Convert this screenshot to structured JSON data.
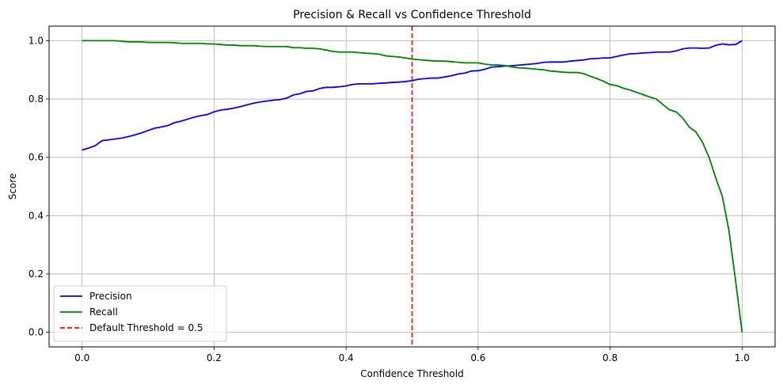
{
  "chart_data": {
    "type": "line",
    "title": "Precision & Recall vs Confidence Threshold",
    "xlabel": "Confidence Threshold",
    "ylabel": "Score",
    "xlim": [
      -0.05,
      1.05
    ],
    "ylim": [
      -0.05,
      1.05
    ],
    "xticks": [
      0.0,
      0.2,
      0.4,
      0.6,
      0.8,
      1.0
    ],
    "yticks": [
      0.0,
      0.2,
      0.4,
      0.6,
      0.8,
      1.0
    ],
    "xtick_labels": [
      "0.0",
      "0.2",
      "0.4",
      "0.6",
      "0.8",
      "1.0"
    ],
    "ytick_labels": [
      "0.0",
      "0.2",
      "0.4",
      "0.6",
      "0.8",
      "1.0"
    ],
    "grid": true,
    "legend_position": "lower-left",
    "x": [
      0.0,
      0.01,
      0.02,
      0.03,
      0.04,
      0.05,
      0.06,
      0.07,
      0.08,
      0.09,
      0.1,
      0.11,
      0.12,
      0.13,
      0.14,
      0.15,
      0.16,
      0.17,
      0.18,
      0.19,
      0.2,
      0.21,
      0.22,
      0.23,
      0.24,
      0.25,
      0.26,
      0.27,
      0.28,
      0.29,
      0.3,
      0.31,
      0.32,
      0.33,
      0.34,
      0.35,
      0.36,
      0.37,
      0.38,
      0.39,
      0.4,
      0.41,
      0.42,
      0.43,
      0.44,
      0.45,
      0.46,
      0.47,
      0.48,
      0.49,
      0.5,
      0.51,
      0.52,
      0.53,
      0.54,
      0.55,
      0.56,
      0.57,
      0.58,
      0.59,
      0.6,
      0.61,
      0.62,
      0.63,
      0.64,
      0.65,
      0.66,
      0.67,
      0.68,
      0.69,
      0.7,
      0.71,
      0.72,
      0.73,
      0.74,
      0.75,
      0.76,
      0.77,
      0.78,
      0.79,
      0.8,
      0.81,
      0.82,
      0.83,
      0.84,
      0.85,
      0.86,
      0.87,
      0.88,
      0.89,
      0.9,
      0.91,
      0.92,
      0.93,
      0.94,
      0.95,
      0.96,
      0.97,
      0.98,
      0.99,
      1.0
    ],
    "series": [
      {
        "name": "Precision",
        "color": "#0000ff",
        "style": "solid",
        "values": [
          0.625,
          0.632,
          0.64,
          0.657,
          0.66,
          0.663,
          0.666,
          0.671,
          0.677,
          0.684,
          0.692,
          0.7,
          0.704,
          0.709,
          0.719,
          0.724,
          0.731,
          0.738,
          0.743,
          0.747,
          0.756,
          0.762,
          0.765,
          0.769,
          0.774,
          0.78,
          0.786,
          0.79,
          0.793,
          0.796,
          0.798,
          0.803,
          0.814,
          0.818,
          0.826,
          0.828,
          0.836,
          0.84,
          0.84,
          0.842,
          0.845,
          0.85,
          0.852,
          0.852,
          0.852,
          0.854,
          0.855,
          0.857,
          0.858,
          0.86,
          0.863,
          0.868,
          0.87,
          0.872,
          0.872,
          0.876,
          0.88,
          0.886,
          0.889,
          0.896,
          0.897,
          0.902,
          0.909,
          0.911,
          0.913,
          0.914,
          0.916,
          0.918,
          0.92,
          0.922,
          0.926,
          0.927,
          0.927,
          0.927,
          0.93,
          0.932,
          0.934,
          0.938,
          0.939,
          0.941,
          0.941,
          0.946,
          0.951,
          0.955,
          0.956,
          0.958,
          0.959,
          0.961,
          0.961,
          0.961,
          0.965,
          0.972,
          0.975,
          0.975,
          0.974,
          0.975,
          0.984,
          0.989,
          0.986,
          0.987,
          1.0
        ]
      },
      {
        "name": "Recall",
        "color": "#008000",
        "style": "solid",
        "values": [
          1.0,
          1.0,
          1.0,
          1.0,
          1.0,
          1.0,
          0.998,
          0.996,
          0.996,
          0.996,
          0.994,
          0.994,
          0.994,
          0.994,
          0.993,
          0.991,
          0.991,
          0.991,
          0.991,
          0.989,
          0.989,
          0.987,
          0.985,
          0.985,
          0.983,
          0.983,
          0.983,
          0.981,
          0.98,
          0.98,
          0.98,
          0.98,
          0.976,
          0.976,
          0.974,
          0.974,
          0.972,
          0.968,
          0.963,
          0.961,
          0.961,
          0.961,
          0.959,
          0.957,
          0.956,
          0.954,
          0.948,
          0.946,
          0.944,
          0.941,
          0.937,
          0.935,
          0.933,
          0.931,
          0.93,
          0.93,
          0.928,
          0.926,
          0.924,
          0.924,
          0.924,
          0.92,
          0.917,
          0.917,
          0.915,
          0.911,
          0.907,
          0.906,
          0.904,
          0.902,
          0.9,
          0.896,
          0.894,
          0.892,
          0.891,
          0.891,
          0.887,
          0.878,
          0.87,
          0.861,
          0.85,
          0.846,
          0.837,
          0.831,
          0.823,
          0.815,
          0.807,
          0.8,
          0.781,
          0.763,
          0.756,
          0.735,
          0.704,
          0.687,
          0.652,
          0.6,
          0.53,
          0.467,
          0.35,
          0.18,
          0.0
        ]
      }
    ],
    "reference_lines": [
      {
        "axis": "x",
        "value": 0.5,
        "color": "#ff0000",
        "style": "dashed",
        "name": "Default Threshold = 0.5"
      }
    ]
  }
}
